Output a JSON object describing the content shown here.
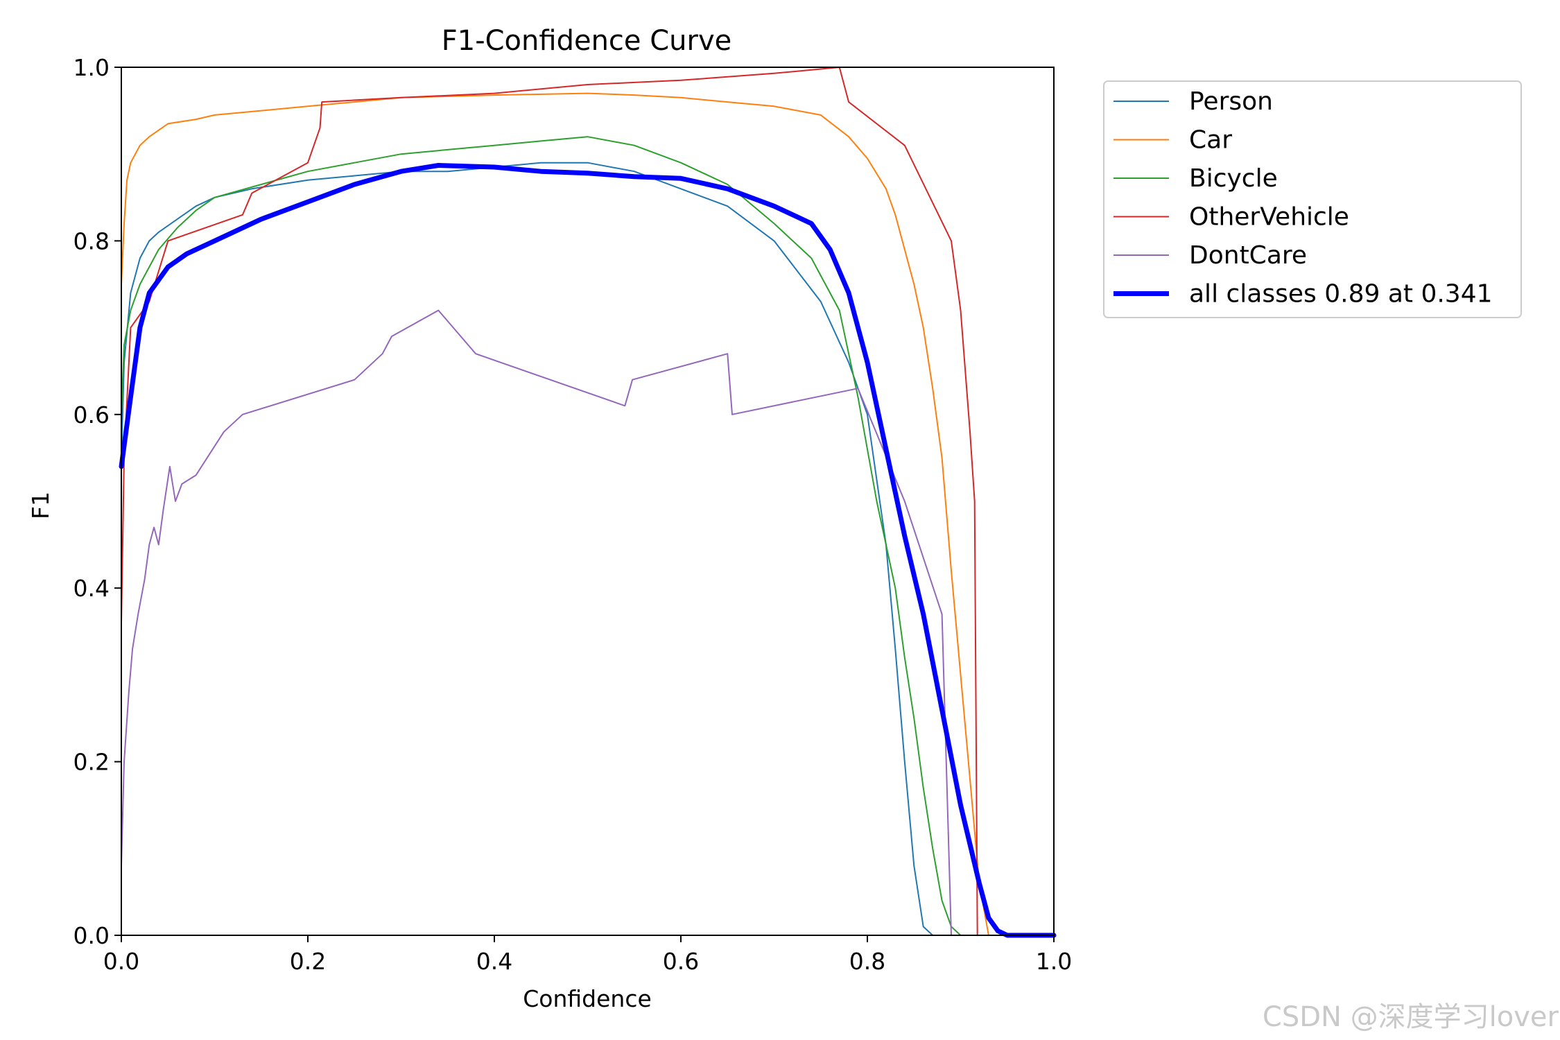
{
  "watermark": "CSDN @深度学习lover",
  "chart_data": {
    "type": "line",
    "title": "F1-Confidence Curve",
    "xlabel": "Confidence",
    "ylabel": "F1",
    "xlim": [
      0.0,
      1.0
    ],
    "ylim": [
      0.0,
      1.0
    ],
    "xticks": [
      "0.0",
      "0.2",
      "0.4",
      "0.6",
      "0.8",
      "1.0"
    ],
    "yticks": [
      "0.0",
      "0.2",
      "0.4",
      "0.6",
      "0.8",
      "1.0"
    ],
    "grid": false,
    "legend_position": "outside-right-top",
    "series": [
      {
        "name": "Person",
        "color": "#1f77b4",
        "width": 2,
        "points": [
          [
            0.0,
            0.55
          ],
          [
            0.003,
            0.66
          ],
          [
            0.01,
            0.74
          ],
          [
            0.02,
            0.78
          ],
          [
            0.03,
            0.8
          ],
          [
            0.04,
            0.81
          ],
          [
            0.06,
            0.825
          ],
          [
            0.08,
            0.84
          ],
          [
            0.1,
            0.85
          ],
          [
            0.14,
            0.86
          ],
          [
            0.2,
            0.87
          ],
          [
            0.25,
            0.875
          ],
          [
            0.3,
            0.88
          ],
          [
            0.35,
            0.88
          ],
          [
            0.4,
            0.885
          ],
          [
            0.45,
            0.89
          ],
          [
            0.5,
            0.89
          ],
          [
            0.55,
            0.88
          ],
          [
            0.6,
            0.86
          ],
          [
            0.65,
            0.84
          ],
          [
            0.7,
            0.8
          ],
          [
            0.75,
            0.73
          ],
          [
            0.78,
            0.66
          ],
          [
            0.8,
            0.6
          ],
          [
            0.82,
            0.45
          ],
          [
            0.83,
            0.33
          ],
          [
            0.84,
            0.2
          ],
          [
            0.85,
            0.08
          ],
          [
            0.86,
            0.01
          ],
          [
            0.87,
            0.0
          ],
          [
            1.0,
            0.0
          ]
        ]
      },
      {
        "name": "Car",
        "color": "#ff7f0e",
        "width": 2,
        "points": [
          [
            0.0,
            0.75
          ],
          [
            0.003,
            0.82
          ],
          [
            0.006,
            0.87
          ],
          [
            0.01,
            0.89
          ],
          [
            0.02,
            0.91
          ],
          [
            0.03,
            0.92
          ],
          [
            0.05,
            0.935
          ],
          [
            0.08,
            0.94
          ],
          [
            0.1,
            0.945
          ],
          [
            0.15,
            0.95
          ],
          [
            0.2,
            0.955
          ],
          [
            0.3,
            0.965
          ],
          [
            0.4,
            0.968
          ],
          [
            0.5,
            0.97
          ],
          [
            0.55,
            0.968
          ],
          [
            0.6,
            0.965
          ],
          [
            0.65,
            0.96
          ],
          [
            0.7,
            0.955
          ],
          [
            0.75,
            0.945
          ],
          [
            0.78,
            0.92
          ],
          [
            0.8,
            0.895
          ],
          [
            0.82,
            0.86
          ],
          [
            0.83,
            0.83
          ],
          [
            0.84,
            0.79
          ],
          [
            0.85,
            0.75
          ],
          [
            0.86,
            0.7
          ],
          [
            0.87,
            0.63
          ],
          [
            0.88,
            0.55
          ],
          [
            0.89,
            0.42
          ],
          [
            0.9,
            0.3
          ],
          [
            0.91,
            0.18
          ],
          [
            0.92,
            0.06
          ],
          [
            0.93,
            0.0
          ],
          [
            1.0,
            0.0
          ]
        ]
      },
      {
        "name": "Bicycle",
        "color": "#2ca02c",
        "width": 2,
        "points": [
          [
            0.0,
            0.6
          ],
          [
            0.003,
            0.68
          ],
          [
            0.01,
            0.72
          ],
          [
            0.02,
            0.75
          ],
          [
            0.04,
            0.79
          ],
          [
            0.06,
            0.815
          ],
          [
            0.08,
            0.835
          ],
          [
            0.1,
            0.85
          ],
          [
            0.15,
            0.865
          ],
          [
            0.2,
            0.88
          ],
          [
            0.25,
            0.89
          ],
          [
            0.3,
            0.9
          ],
          [
            0.35,
            0.905
          ],
          [
            0.4,
            0.91
          ],
          [
            0.45,
            0.915
          ],
          [
            0.5,
            0.92
          ],
          [
            0.55,
            0.91
          ],
          [
            0.6,
            0.89
          ],
          [
            0.65,
            0.865
          ],
          [
            0.7,
            0.82
          ],
          [
            0.74,
            0.78
          ],
          [
            0.77,
            0.72
          ],
          [
            0.79,
            0.62
          ],
          [
            0.81,
            0.5
          ],
          [
            0.83,
            0.4
          ],
          [
            0.84,
            0.32
          ],
          [
            0.85,
            0.25
          ],
          [
            0.86,
            0.17
          ],
          [
            0.87,
            0.1
          ],
          [
            0.88,
            0.04
          ],
          [
            0.89,
            0.01
          ],
          [
            0.9,
            0.0
          ],
          [
            1.0,
            0.0
          ]
        ]
      },
      {
        "name": "OtherVehicle",
        "color": "#d62728",
        "width": 2,
        "points": [
          [
            0.0,
            0.36
          ],
          [
            0.003,
            0.55
          ],
          [
            0.01,
            0.7
          ],
          [
            0.03,
            0.73
          ],
          [
            0.05,
            0.8
          ],
          [
            0.13,
            0.83
          ],
          [
            0.14,
            0.855
          ],
          [
            0.2,
            0.89
          ],
          [
            0.213,
            0.93
          ],
          [
            0.215,
            0.96
          ],
          [
            0.3,
            0.965
          ],
          [
            0.4,
            0.97
          ],
          [
            0.5,
            0.98
          ],
          [
            0.6,
            0.985
          ],
          [
            0.7,
            0.993
          ],
          [
            0.77,
            1.0
          ],
          [
            0.78,
            0.96
          ],
          [
            0.84,
            0.91
          ],
          [
            0.89,
            0.8
          ],
          [
            0.9,
            0.72
          ],
          [
            0.91,
            0.58
          ],
          [
            0.915,
            0.5
          ],
          [
            0.918,
            0.0
          ],
          [
            1.0,
            0.0
          ]
        ]
      },
      {
        "name": "DontCare",
        "color": "#9467bd",
        "width": 2,
        "points": [
          [
            0.0,
            0.08
          ],
          [
            0.003,
            0.2
          ],
          [
            0.008,
            0.28
          ],
          [
            0.012,
            0.33
          ],
          [
            0.018,
            0.37
          ],
          [
            0.025,
            0.41
          ],
          [
            0.03,
            0.45
          ],
          [
            0.035,
            0.47
          ],
          [
            0.04,
            0.45
          ],
          [
            0.045,
            0.49
          ],
          [
            0.052,
            0.54
          ],
          [
            0.058,
            0.5
          ],
          [
            0.065,
            0.52
          ],
          [
            0.08,
            0.53
          ],
          [
            0.11,
            0.58
          ],
          [
            0.13,
            0.6
          ],
          [
            0.25,
            0.64
          ],
          [
            0.28,
            0.67
          ],
          [
            0.29,
            0.69
          ],
          [
            0.34,
            0.72
          ],
          [
            0.38,
            0.67
          ],
          [
            0.54,
            0.61
          ],
          [
            0.548,
            0.64
          ],
          [
            0.65,
            0.67
          ],
          [
            0.655,
            0.6
          ],
          [
            0.79,
            0.63
          ],
          [
            0.84,
            0.5
          ],
          [
            0.88,
            0.37
          ],
          [
            0.89,
            0.0
          ],
          [
            1.0,
            0.0
          ]
        ]
      },
      {
        "name": "all classes 0.89 at 0.341",
        "color": "#0000ff",
        "width": 7,
        "points": [
          [
            0.0,
            0.54
          ],
          [
            0.01,
            0.62
          ],
          [
            0.02,
            0.7
          ],
          [
            0.03,
            0.74
          ],
          [
            0.05,
            0.77
          ],
          [
            0.07,
            0.785
          ],
          [
            0.1,
            0.8
          ],
          [
            0.15,
            0.825
          ],
          [
            0.2,
            0.845
          ],
          [
            0.25,
            0.865
          ],
          [
            0.3,
            0.88
          ],
          [
            0.34,
            0.887
          ],
          [
            0.4,
            0.885
          ],
          [
            0.45,
            0.88
          ],
          [
            0.5,
            0.878
          ],
          [
            0.55,
            0.874
          ],
          [
            0.6,
            0.872
          ],
          [
            0.65,
            0.86
          ],
          [
            0.7,
            0.84
          ],
          [
            0.74,
            0.82
          ],
          [
            0.76,
            0.79
          ],
          [
            0.78,
            0.74
          ],
          [
            0.8,
            0.66
          ],
          [
            0.82,
            0.56
          ],
          [
            0.84,
            0.46
          ],
          [
            0.86,
            0.37
          ],
          [
            0.88,
            0.26
          ],
          [
            0.9,
            0.15
          ],
          [
            0.92,
            0.06
          ],
          [
            0.93,
            0.02
          ],
          [
            0.94,
            0.005
          ],
          [
            0.95,
            0.0
          ],
          [
            1.0,
            0.0
          ]
        ]
      }
    ]
  }
}
